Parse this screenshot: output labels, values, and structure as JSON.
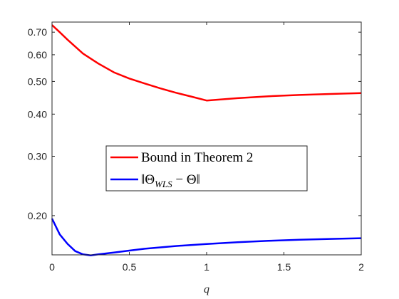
{
  "chart_data": {
    "type": "line",
    "xlabel": "q",
    "ylabel": "",
    "yscale": "log",
    "xlim": [
      0,
      2
    ],
    "ylim": [
      0.153,
      0.75
    ],
    "grid": false,
    "legend_position": "center",
    "xticks": [
      0,
      0.5,
      1,
      1.5,
      2
    ],
    "xtick_labels": [
      "0",
      "0.5",
      "1",
      "1.5",
      "2"
    ],
    "yticks": [
      0.2,
      0.3,
      0.4,
      0.5,
      0.6,
      0.7
    ],
    "ytick_labels": [
      "0.20",
      "0.30",
      "0.40",
      "0.50",
      "0.60",
      "0.70"
    ],
    "series": [
      {
        "name": "Bound in Theorem 2",
        "color": "#ff0000",
        "x": [
          0,
          0.05,
          0.1,
          0.2,
          0.3,
          0.4,
          0.5,
          0.6,
          0.7,
          0.8,
          0.9,
          1.0,
          1.2,
          1.4,
          1.6,
          1.8,
          2.0
        ],
        "y": [
          0.735,
          0.7,
          0.665,
          0.605,
          0.565,
          0.532,
          0.51,
          0.493,
          0.477,
          0.463,
          0.451,
          0.439,
          0.446,
          0.452,
          0.456,
          0.459,
          0.462
        ]
      },
      {
        "name": "||Θ_WLS − Θ||",
        "color": "#0000ff",
        "x": [
          0,
          0.05,
          0.1,
          0.15,
          0.2,
          0.25,
          0.3,
          0.4,
          0.5,
          0.6,
          0.8,
          1.0,
          1.2,
          1.4,
          1.6,
          1.8,
          2.0
        ],
        "y": [
          0.196,
          0.176,
          0.165,
          0.157,
          0.1535,
          0.1525,
          0.1535,
          0.1555,
          0.1575,
          0.1595,
          0.1625,
          0.1648,
          0.1668,
          0.1684,
          0.1696,
          0.1706,
          0.1714
        ]
      }
    ]
  }
}
